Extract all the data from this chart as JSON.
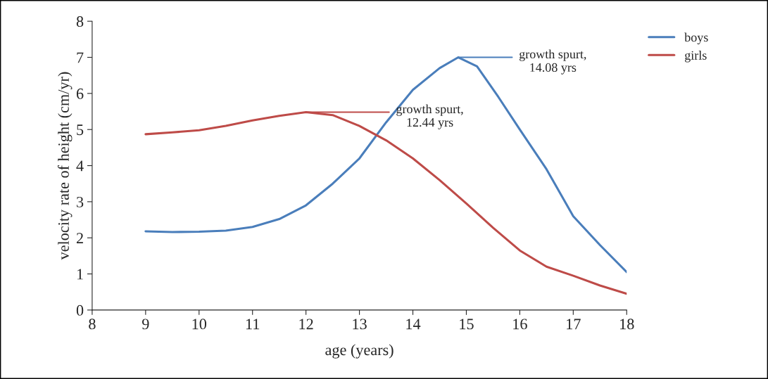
{
  "chart_data": {
    "type": "line",
    "xlabel": "age (years)",
    "ylabel": "velocity rate of height (cm/yr)",
    "xlim": [
      8,
      18
    ],
    "xticks": [
      8,
      9,
      10,
      11,
      12,
      13,
      14,
      15,
      16,
      17,
      18
    ],
    "ylim": [
      0,
      8
    ],
    "yticks": [
      0,
      1,
      2,
      3,
      4,
      5,
      6,
      7,
      8
    ],
    "grid": false,
    "legend": "top right",
    "line_style": "solid",
    "marker": "none",
    "series": [
      {
        "name": "boys",
        "color": "#4a7ebb",
        "x": [
          9,
          9.5,
          10,
          10.5,
          11,
          11.5,
          12,
          12.5,
          13,
          13.5,
          14,
          14.5,
          14.85,
          15.2,
          15.6,
          16,
          16.5,
          17,
          17.5,
          18
        ],
        "values": [
          2.18,
          2.16,
          2.17,
          2.2,
          2.3,
          2.52,
          2.9,
          3.5,
          4.2,
          5.2,
          6.1,
          6.7,
          7.0,
          6.75,
          5.9,
          5.0,
          3.9,
          2.6,
          1.8,
          1.05
        ]
      },
      {
        "name": "girls",
        "color": "#be4b48",
        "x": [
          9,
          9.5,
          10,
          10.5,
          11,
          11.5,
          12,
          12.5,
          13,
          13.5,
          14,
          14.5,
          15,
          15.5,
          16,
          16.5,
          17,
          17.5,
          18
        ],
        "values": [
          4.87,
          4.92,
          4.98,
          5.1,
          5.25,
          5.38,
          5.48,
          5.4,
          5.1,
          4.7,
          4.2,
          3.6,
          2.95,
          2.28,
          1.65,
          1.2,
          0.95,
          0.68,
          0.45
        ]
      }
    ],
    "annotations": [
      "growth spurt,\n14.08 yrs",
      {
        "text": "growth spurt,\n12.44 yrs",
        "x": 12.0,
        "y": 5.48
      }
    ]
  }
}
